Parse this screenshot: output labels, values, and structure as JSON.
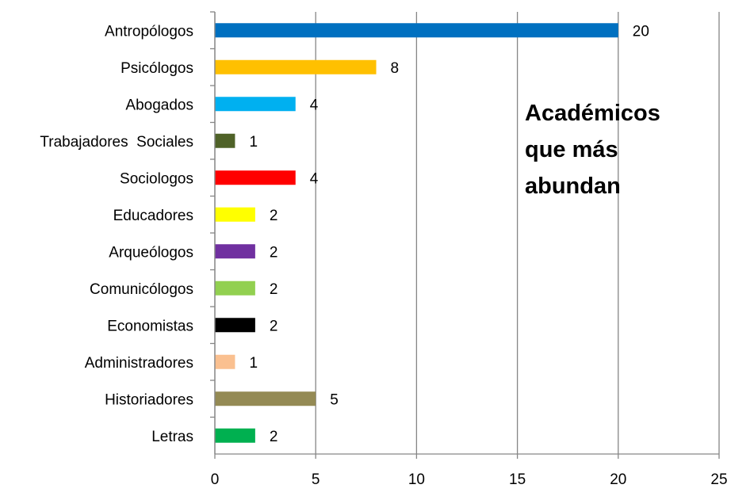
{
  "chart_data": {
    "type": "barh",
    "title": "Académicos que más abundan",
    "categories": [
      "Antropólogos",
      "Psicólogos",
      "Abogados",
      "Trabajadores  Sociales",
      "Sociologos",
      "Educadores",
      "Arqueólogos",
      "Comunicólogos",
      "Economistas",
      "Administradores",
      "Historiadores",
      "Letras"
    ],
    "values": [
      20,
      8,
      4,
      1,
      4,
      2,
      2,
      2,
      2,
      1,
      5,
      2
    ],
    "colors": [
      "#0070c0",
      "#ffc000",
      "#00b0f0",
      "#4f6228",
      "#ff0000",
      "#ffff00",
      "#7030a0",
      "#92d050",
      "#000000",
      "#fac090",
      "#948a54",
      "#00b050"
    ],
    "xlim": [
      0,
      25
    ],
    "xticks": [
      0,
      5,
      10,
      15,
      20,
      25
    ],
    "grid": true
  }
}
